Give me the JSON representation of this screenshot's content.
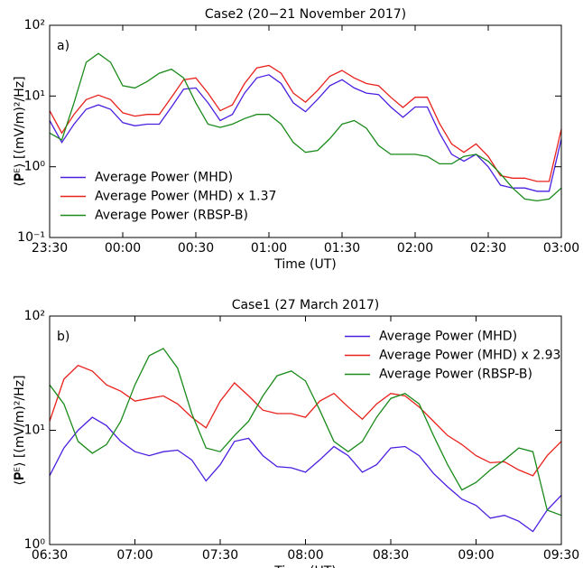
{
  "chart_data": [
    {
      "type": "line",
      "title": "Case2 (20−21 November 2017)",
      "annotation": "a)",
      "xlabel": "Time (UT)",
      "ylabel": "⟨𝐏ᴱ⟩ [(mV/m)²/Hz]",
      "log_y": true,
      "legend": "lower left",
      "x": [
        0,
        5,
        10,
        15,
        20,
        25,
        30,
        35,
        40,
        45,
        50,
        55,
        60,
        65,
        70,
        75,
        80,
        85,
        90,
        95,
        100,
        105,
        110,
        115,
        120,
        125,
        130,
        135,
        140,
        145,
        150,
        155,
        160,
        165,
        170,
        175,
        180,
        185,
        190,
        195,
        200,
        205,
        210
      ],
      "xlim": [
        0,
        210
      ],
      "xticks": [
        {
          "value": 0,
          "label": "23:30"
        },
        {
          "value": 30,
          "label": "00:00"
        },
        {
          "value": 60,
          "label": "00:30"
        },
        {
          "value": 90,
          "label": "01:00"
        },
        {
          "value": 120,
          "label": "01:30"
        },
        {
          "value": 150,
          "label": "02:00"
        },
        {
          "value": 180,
          "label": "02:30"
        },
        {
          "value": 210,
          "label": "03:00"
        }
      ],
      "ylim": [
        0.1,
        100
      ],
      "yticks": [
        {
          "value": 0.1,
          "label": "10⁻¹"
        },
        {
          "value": 1,
          "label": "10⁰"
        },
        {
          "value": 10,
          "label": "10¹"
        },
        {
          "value": 100,
          "label": "10²"
        }
      ],
      "series": [
        {
          "name": "Average Power (MHD)",
          "color": "#4b1fe0",
          "values": [
            4.5,
            2.2,
            4,
            6.5,
            7.5,
            6.5,
            4.2,
            3.8,
            4,
            4,
            7,
            12.5,
            13,
            8,
            4.5,
            5.5,
            11,
            18,
            20,
            15,
            8,
            6,
            9,
            14,
            17,
            13,
            11,
            10.5,
            7,
            5,
            7,
            7,
            3,
            1.5,
            1.2,
            1.5,
            1,
            0.55,
            0.5,
            0.5,
            0.45,
            0.45,
            2.5
          ]
        },
        {
          "name": "Average Power (MHD) x 1.37",
          "color": "#e8211c",
          "values": [
            6.2,
            3,
            5.5,
            8.9,
            10.3,
            8.9,
            5.8,
            5.2,
            5.5,
            5.5,
            9.6,
            17,
            18,
            11,
            6.2,
            7.5,
            15,
            25,
            27,
            21,
            11,
            8.2,
            12,
            19,
            23,
            18,
            15,
            14,
            9.6,
            6.9,
            9.6,
            9.6,
            4.1,
            2.1,
            1.6,
            2.1,
            1.4,
            0.75,
            0.69,
            0.69,
            0.62,
            0.62,
            3.4
          ]
        },
        {
          "name": "Average Power (RBSP-B)",
          "color": "#1a8a1a",
          "values": [
            3,
            2.4,
            8,
            30,
            40,
            30,
            14,
            13,
            16,
            21,
            24,
            18,
            8,
            4,
            3.6,
            4,
            4.8,
            5.5,
            5.5,
            4,
            2.2,
            1.6,
            1.7,
            2.5,
            4,
            4.5,
            3.5,
            2,
            1.5,
            1.5,
            1.5,
            1.4,
            1.1,
            1.1,
            1.4,
            1.5,
            1.2,
            0.8,
            0.5,
            0.35,
            0.33,
            0.35,
            0.5
          ]
        }
      ]
    },
    {
      "type": "line",
      "title": "Case1 (27 March 2017)",
      "annotation": "b)",
      "xlabel": "Time (UT)",
      "ylabel": "⟨𝐏ᴱ⟩ [(mV/m)²/Hz]",
      "log_y": true,
      "legend": "upper right",
      "x": [
        0,
        5,
        10,
        15,
        20,
        25,
        30,
        35,
        40,
        45,
        50,
        55,
        60,
        65,
        70,
        75,
        80,
        85,
        90,
        95,
        100,
        105,
        110,
        115,
        120,
        125,
        130,
        135,
        140,
        145,
        150,
        155,
        160,
        165,
        170,
        175,
        180
      ],
      "xlim": [
        0,
        180
      ],
      "xticks": [
        {
          "value": 0,
          "label": "06:30"
        },
        {
          "value": 30,
          "label": "07:00"
        },
        {
          "value": 60,
          "label": "07:30"
        },
        {
          "value": 90,
          "label": "08:00"
        },
        {
          "value": 120,
          "label": "08:30"
        },
        {
          "value": 150,
          "label": "09:00"
        },
        {
          "value": 180,
          "label": "09:30"
        }
      ],
      "ylim": [
        1,
        100
      ],
      "yticks": [
        {
          "value": 1,
          "label": "10⁰"
        },
        {
          "value": 10,
          "label": "10¹"
        },
        {
          "value": 100,
          "label": "10²"
        }
      ],
      "series": [
        {
          "name": "Average Power (MHD)",
          "color": "#4b1fe0",
          "values": [
            4,
            7,
            10,
            13,
            11,
            8,
            6.5,
            6,
            6.5,
            6.7,
            5.5,
            3.6,
            5,
            8,
            8.5,
            6,
            4.8,
            4.7,
            4.3,
            5.5,
            7.2,
            6,
            4.3,
            5,
            7,
            7.2,
            6,
            4.2,
            3.2,
            2.5,
            2.2,
            1.7,
            1.8,
            1.6,
            1.3,
            2,
            2.7
          ]
        },
        {
          "name": "Average Power (MHD) x 2.93",
          "color": "#e8211c",
          "values": [
            12,
            28,
            37,
            33,
            25,
            22,
            18,
            19,
            20,
            17,
            13,
            10.5,
            18,
            26,
            20,
            15,
            14,
            14,
            13,
            18,
            21,
            16,
            12.5,
            17,
            21,
            20,
            16,
            12,
            9,
            7.5,
            6,
            5.2,
            5.3,
            4.5,
            4,
            6,
            8
          ]
        },
        {
          "name": "Average Power (RBSP-B)",
          "color": "#1a8a1a",
          "values": [
            25,
            17,
            8,
            6.3,
            7.5,
            12,
            25,
            45,
            52,
            35,
            14,
            7,
            6.5,
            9,
            12,
            20,
            30,
            33,
            27,
            15,
            8,
            6.5,
            8,
            13,
            19,
            21,
            17,
            9,
            5,
            3,
            3.5,
            4.5,
            5.5,
            7,
            6.5,
            2,
            1.8
          ]
        }
      ]
    }
  ]
}
